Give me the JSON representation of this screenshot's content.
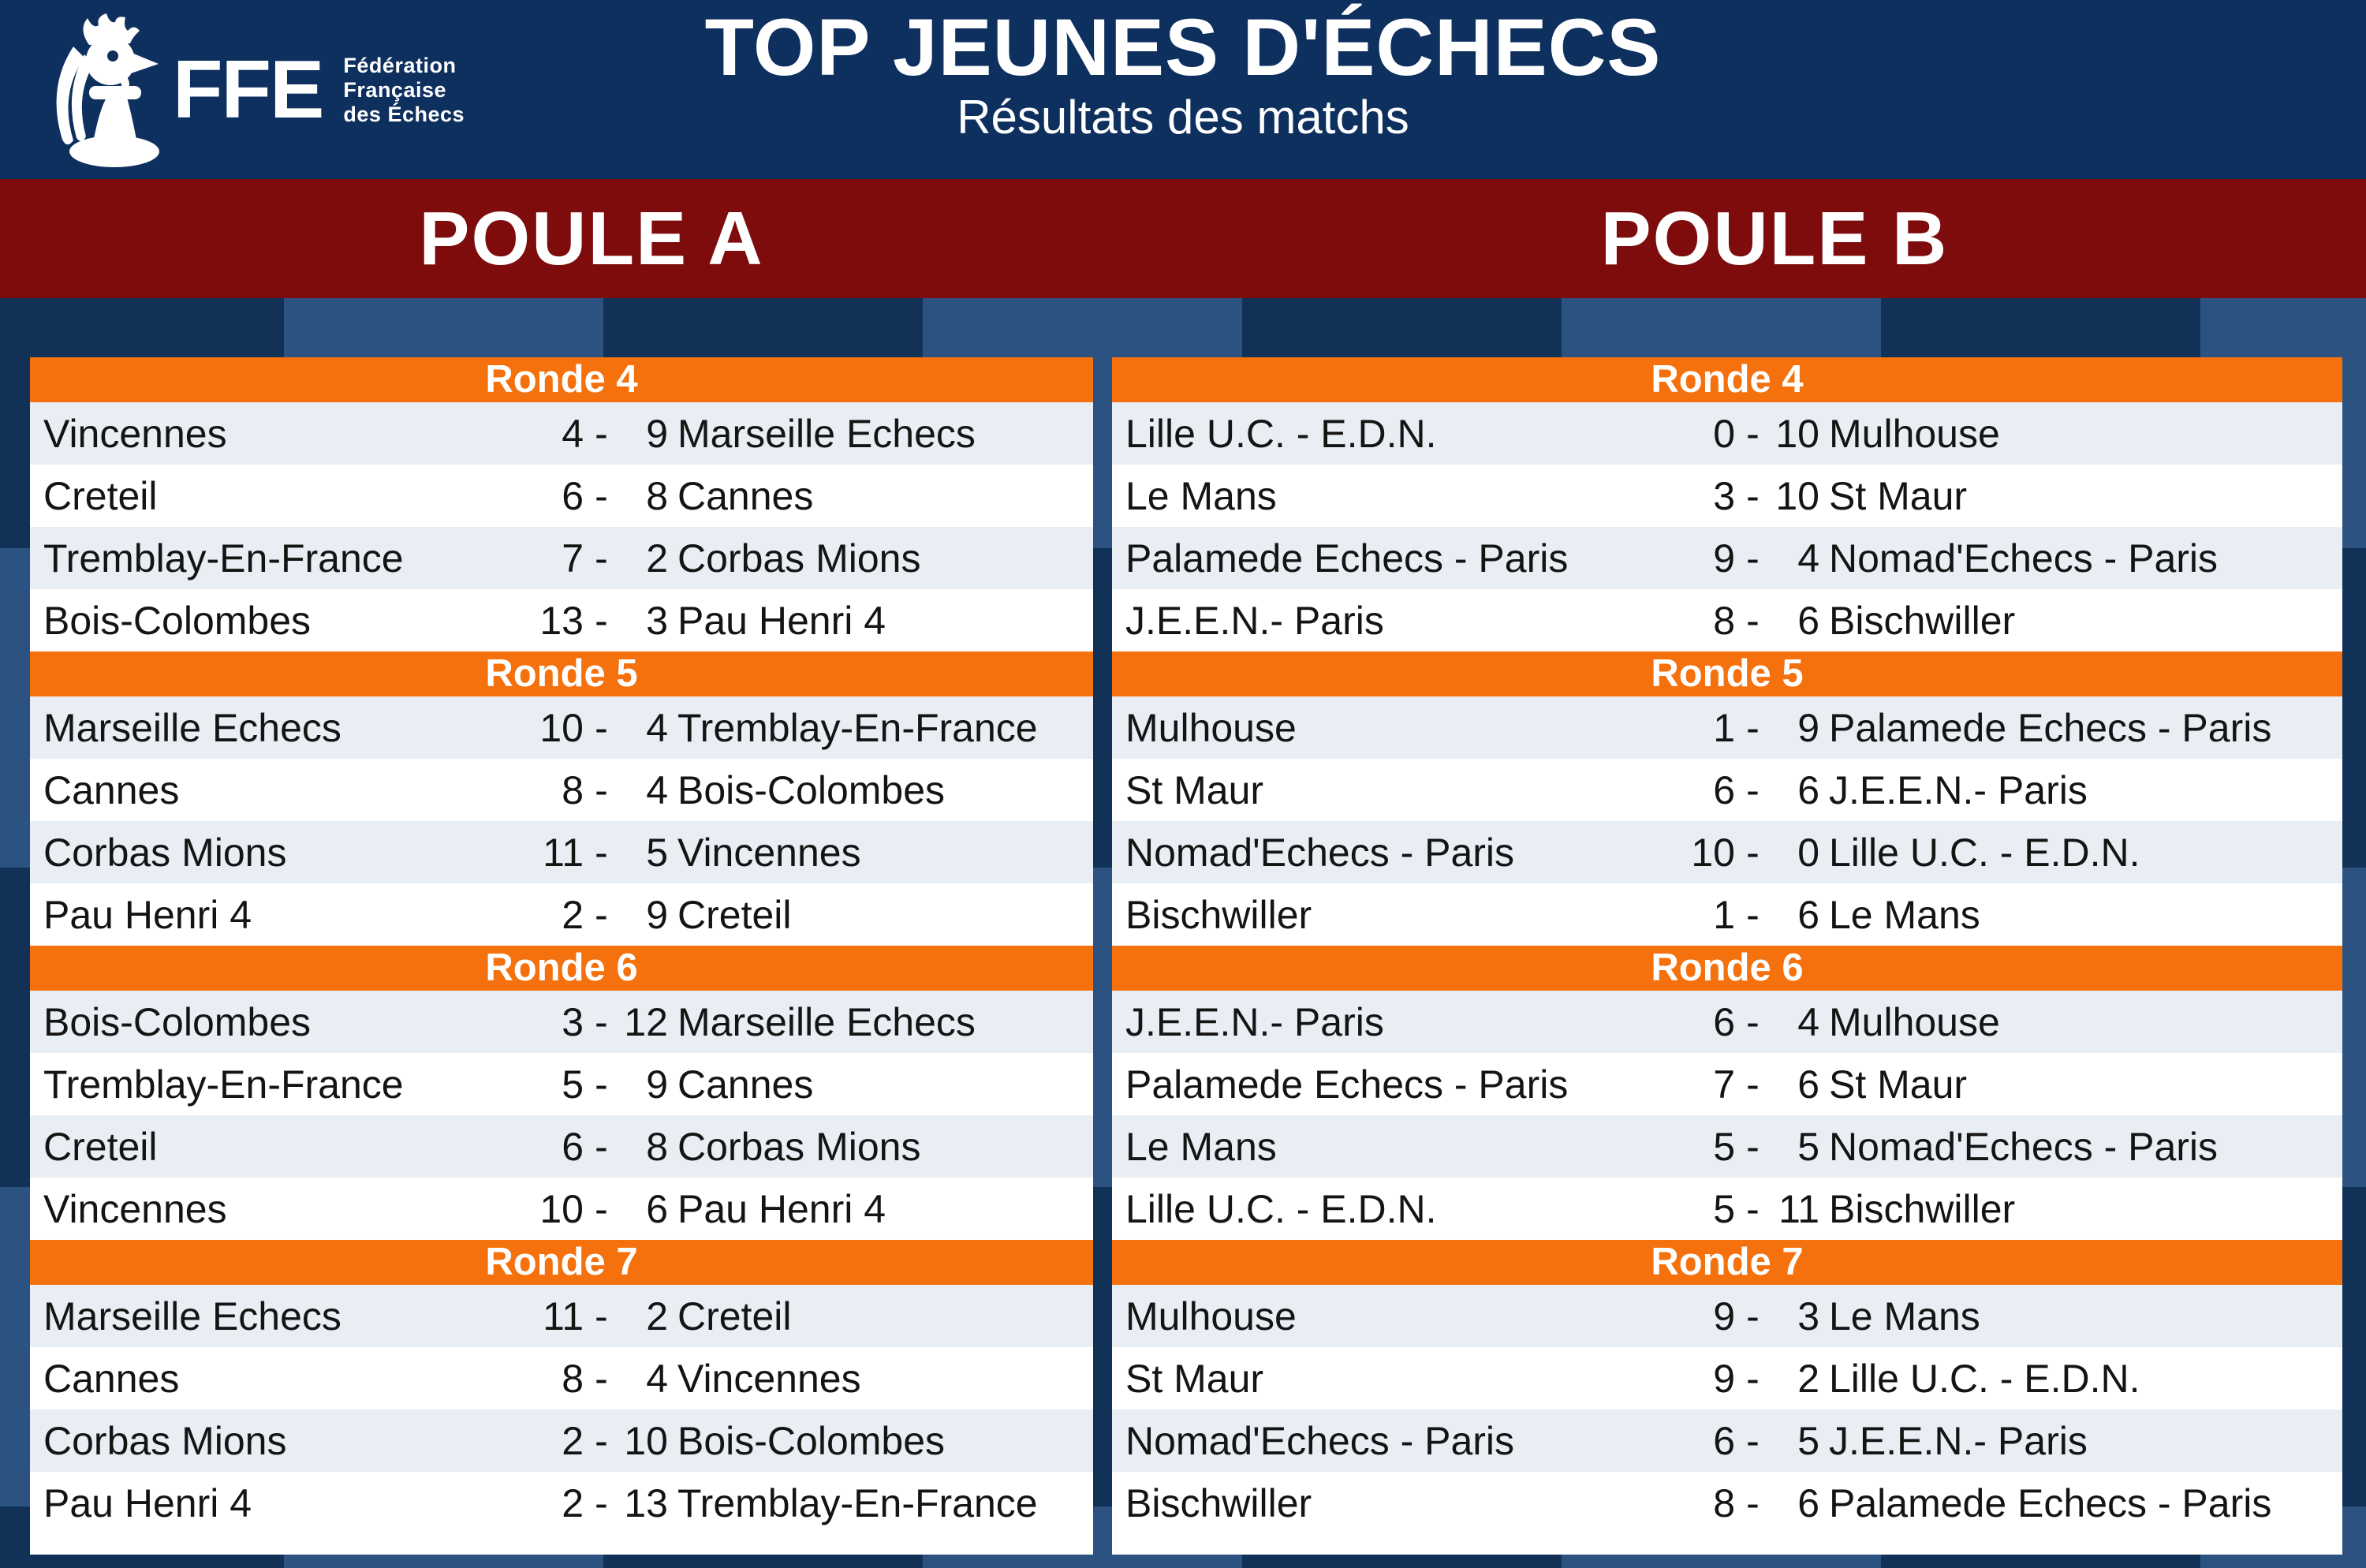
{
  "header": {
    "title": "TOP JEUNES D'ÉCHECS",
    "subtitle": "Résultats des matchs",
    "logo": {
      "acronym": "FFE",
      "org_lines": [
        "Fédération",
        "Française",
        "des Échecs"
      ]
    }
  },
  "table": {
    "separator": "-"
  },
  "pools": [
    {
      "label": "POULE A",
      "rounds": [
        {
          "label": "Ronde 4",
          "matches": [
            {
              "home": "Vincennes",
              "score_home": "4",
              "score_away": "9",
              "away": "Marseille Echecs"
            },
            {
              "home": "Creteil",
              "score_home": "6",
              "score_away": "8",
              "away": "Cannes"
            },
            {
              "home": "Tremblay-En-France",
              "score_home": "7",
              "score_away": "2",
              "away": "Corbas Mions"
            },
            {
              "home": "Bois-Colombes",
              "score_home": "13",
              "score_away": "3",
              "away": "Pau Henri 4"
            }
          ]
        },
        {
          "label": "Ronde 5",
          "matches": [
            {
              "home": "Marseille Echecs",
              "score_home": "10",
              "score_away": "4",
              "away": "Tremblay-En-France"
            },
            {
              "home": "Cannes",
              "score_home": "8",
              "score_away": "4",
              "away": "Bois-Colombes"
            },
            {
              "home": "Corbas Mions",
              "score_home": "11",
              "score_away": "5",
              "away": "Vincennes"
            },
            {
              "home": "Pau Henri 4",
              "score_home": "2",
              "score_away": "9",
              "away": "Creteil"
            }
          ]
        },
        {
          "label": "Ronde 6",
          "matches": [
            {
              "home": "Bois-Colombes",
              "score_home": "3",
              "score_away": "12",
              "away": "Marseille Echecs"
            },
            {
              "home": "Tremblay-En-France",
              "score_home": "5",
              "score_away": "9",
              "away": "Cannes"
            },
            {
              "home": "Creteil",
              "score_home": "6",
              "score_away": "8",
              "away": "Corbas Mions"
            },
            {
              "home": "Vincennes",
              "score_home": "10",
              "score_away": "6",
              "away": "Pau Henri 4"
            }
          ]
        },
        {
          "label": "Ronde 7",
          "matches": [
            {
              "home": "Marseille Echecs",
              "score_home": "11",
              "score_away": "2",
              "away": "Creteil"
            },
            {
              "home": "Cannes",
              "score_home": "8",
              "score_away": "4",
              "away": "Vincennes"
            },
            {
              "home": "Corbas Mions",
              "score_home": "2",
              "score_away": "10",
              "away": "Bois-Colombes"
            },
            {
              "home": "Pau Henri 4",
              "score_home": "2",
              "score_away": "13",
              "away": "Tremblay-En-France"
            }
          ]
        }
      ]
    },
    {
      "label": "POULE B",
      "rounds": [
        {
          "label": "Ronde 4",
          "matches": [
            {
              "home": "Lille U.C. - E.D.N.",
              "score_home": "0",
              "score_away": "10",
              "away": "Mulhouse"
            },
            {
              "home": "Le Mans",
              "score_home": "3",
              "score_away": "10",
              "away": "St Maur"
            },
            {
              "home": "Palamede Echecs - Paris",
              "score_home": "9",
              "score_away": "4",
              "away": "Nomad'Echecs - Paris"
            },
            {
              "home": "J.E.E.N.- Paris",
              "score_home": "8",
              "score_away": "6",
              "away": "Bischwiller"
            }
          ]
        },
        {
          "label": "Ronde 5",
          "matches": [
            {
              "home": "Mulhouse",
              "score_home": "1",
              "score_away": "9",
              "away": "Palamede Echecs - Paris"
            },
            {
              "home": "St Maur",
              "score_home": "6",
              "score_away": "6",
              "away": "J.E.E.N.- Paris"
            },
            {
              "home": "Nomad'Echecs - Paris",
              "score_home": "10",
              "score_away": "0",
              "away": "Lille U.C. - E.D.N."
            },
            {
              "home": "Bischwiller",
              "score_home": "1",
              "score_away": "6",
              "away": "Le Mans"
            }
          ]
        },
        {
          "label": "Ronde 6",
          "matches": [
            {
              "home": "J.E.E.N.- Paris",
              "score_home": "6",
              "score_away": "4",
              "away": "Mulhouse"
            },
            {
              "home": "Palamede Echecs - Paris",
              "score_home": "7",
              "score_away": "6",
              "away": "St Maur"
            },
            {
              "home": "Le Mans",
              "score_home": "5",
              "score_away": "5",
              "away": "Nomad'Echecs - Paris"
            },
            {
              "home": "Lille U.C. - E.D.N.",
              "score_home": "5",
              "score_away": "11",
              "away": "Bischwiller"
            }
          ]
        },
        {
          "label": "Ronde 7",
          "matches": [
            {
              "home": "Mulhouse",
              "score_home": "9",
              "score_away": "3",
              "away": "Le Mans"
            },
            {
              "home": "St Maur",
              "score_home": "9",
              "score_away": "2",
              "away": "Lille U.C. - E.D.N."
            },
            {
              "home": "Nomad'Echecs - Paris",
              "score_home": "6",
              "score_away": "5",
              "away": "J.E.E.N.- Paris"
            },
            {
              "home": "Bischwiller",
              "score_home": "8",
              "score_away": "6",
              "away": "Palamede Echecs - Paris"
            }
          ]
        }
      ]
    }
  ],
  "colors": {
    "orange": "#F4710D",
    "navy": "#0E305F",
    "band_red": "#7F0C0C",
    "row_alt": "#E9EDF4",
    "checker_light": "#2B5280",
    "checker_dark": "#113157",
    "text": "#141414"
  }
}
